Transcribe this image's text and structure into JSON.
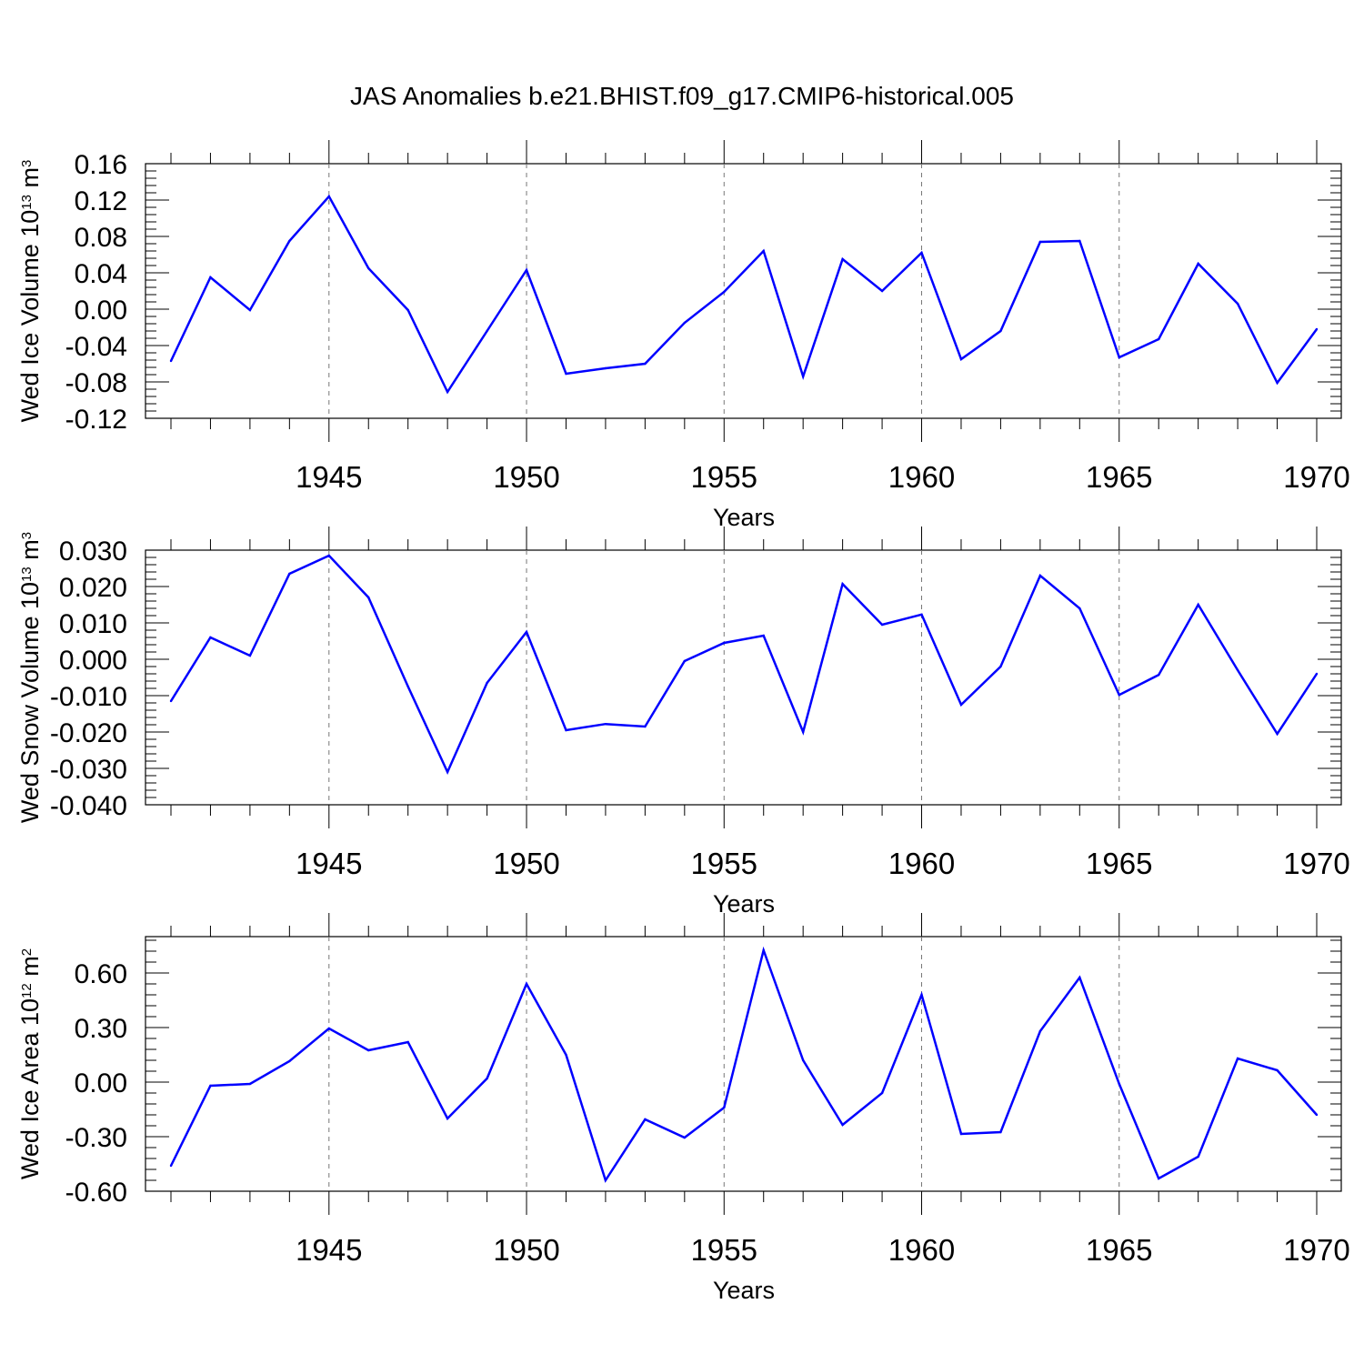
{
  "figure": {
    "title": "JAS Anomalies b.e21.BHIST.f09_g17.CMIP6-historical.005"
  },
  "chart_data": [
    {
      "type": "line",
      "ylabel": "Wed Ice Volume 10",
      "ylabel_exp": "13",
      "ylabel_unit": " m",
      "ylabel_unit_exp": "3",
      "xlabel": "Years",
      "ylim": [
        -0.12,
        0.16
      ],
      "xlim": [
        1941,
        1970
      ],
      "ytick_values": [
        -0.12,
        -0.08,
        -0.04,
        0.0,
        0.04,
        0.08,
        0.12,
        0.16
      ],
      "yticks": [
        "-0.12",
        "-0.08",
        "-0.04",
        "0.00",
        "0.04",
        "0.08",
        "0.12",
        "0.16"
      ],
      "xtick_values": [
        1945,
        1950,
        1955,
        1960,
        1965,
        1970
      ],
      "xticks": [
        "1945",
        "1950",
        "1955",
        "1960",
        "1965",
        "1970"
      ],
      "grid": "dashed vertical at labeled years",
      "color": "#0000ff",
      "x": [
        1941,
        1942,
        1943,
        1944,
        1945,
        1946,
        1947,
        1948,
        1949,
        1950,
        1951,
        1952,
        1953,
        1954,
        1955,
        1956,
        1957,
        1958,
        1959,
        1960,
        1961,
        1962,
        1963,
        1964,
        1965,
        1966,
        1967,
        1968,
        1969,
        1970
      ],
      "values": [
        -0.057,
        0.035,
        -0.001,
        0.075,
        0.124,
        0.045,
        -0.001,
        -0.091,
        -0.024,
        0.043,
        -0.071,
        -0.065,
        -0.06,
        -0.015,
        0.019,
        0.064,
        -0.074,
        0.055,
        0.02,
        0.062,
        -0.055,
        -0.024,
        0.074,
        0.075,
        -0.053,
        -0.033,
        0.05,
        0.006,
        -0.081,
        -0.022
      ]
    },
    {
      "type": "line",
      "ylabel": "Wed Snow Volume 10",
      "ylabel_exp": "13",
      "ylabel_unit": " m",
      "ylabel_unit_exp": "3",
      "xlabel": "Years",
      "ylim": [
        -0.04,
        0.03
      ],
      "xlim": [
        1941,
        1970
      ],
      "ytick_values": [
        -0.04,
        -0.03,
        -0.02,
        -0.01,
        0.0,
        0.01,
        0.02,
        0.03
      ],
      "yticks": [
        "-0.040",
        "-0.030",
        "-0.020",
        "-0.010",
        "0.000",
        "0.010",
        "0.020",
        "0.030"
      ],
      "xtick_values": [
        1945,
        1950,
        1955,
        1960,
        1965,
        1970
      ],
      "xticks": [
        "1945",
        "1950",
        "1955",
        "1960",
        "1965",
        "1970"
      ],
      "grid": "dashed vertical at labeled years",
      "color": "#0000ff",
      "x": [
        1941,
        1942,
        1943,
        1944,
        1945,
        1946,
        1947,
        1948,
        1949,
        1950,
        1951,
        1952,
        1953,
        1954,
        1955,
        1956,
        1957,
        1958,
        1959,
        1960,
        1961,
        1962,
        1963,
        1964,
        1965,
        1966,
        1967,
        1968,
        1969,
        1970
      ],
      "values": [
        -0.0115,
        0.006,
        0.001,
        0.0235,
        0.0285,
        0.017,
        -0.0075,
        -0.031,
        -0.0065,
        0.0075,
        -0.0195,
        -0.0178,
        -0.0185,
        -0.0005,
        0.0045,
        0.0065,
        -0.02,
        0.0207,
        0.0095,
        0.0123,
        -0.0125,
        -0.002,
        0.023,
        0.014,
        -0.0098,
        -0.0043,
        0.015,
        -0.003,
        -0.0205,
        -0.004
      ]
    },
    {
      "type": "line",
      "ylabel": "Wed Ice Area 10",
      "ylabel_exp": "12",
      "ylabel_unit": " m",
      "ylabel_unit_exp": "2",
      "xlabel": "Years",
      "ylim": [
        -0.6,
        0.8
      ],
      "xlim": [
        1941,
        1970
      ],
      "ytick_values": [
        -0.6,
        -0.3,
        0.0,
        0.3,
        0.6
      ],
      "yticks": [
        "-0.60",
        "-0.30",
        "0.00",
        "0.30",
        "0.60"
      ],
      "xtick_values": [
        1945,
        1950,
        1955,
        1960,
        1965,
        1970
      ],
      "xticks": [
        "1945",
        "1950",
        "1955",
        "1960",
        "1965",
        "1970"
      ],
      "grid": "dashed vertical at labeled years",
      "color": "#0000ff",
      "x": [
        1941,
        1942,
        1943,
        1944,
        1945,
        1946,
        1947,
        1948,
        1949,
        1950,
        1951,
        1952,
        1953,
        1954,
        1955,
        1956,
        1957,
        1958,
        1959,
        1960,
        1961,
        1962,
        1963,
        1964,
        1965,
        1966,
        1967,
        1968,
        1969,
        1970
      ],
      "values": [
        -0.46,
        -0.02,
        -0.01,
        0.115,
        0.295,
        0.175,
        0.22,
        -0.2,
        0.02,
        0.54,
        0.15,
        -0.54,
        -0.205,
        -0.305,
        -0.14,
        0.725,
        0.12,
        -0.235,
        -0.06,
        0.48,
        -0.285,
        -0.275,
        0.28,
        0.575,
        -0.01,
        -0.53,
        -0.41,
        0.13,
        0.065,
        -0.18
      ]
    }
  ]
}
